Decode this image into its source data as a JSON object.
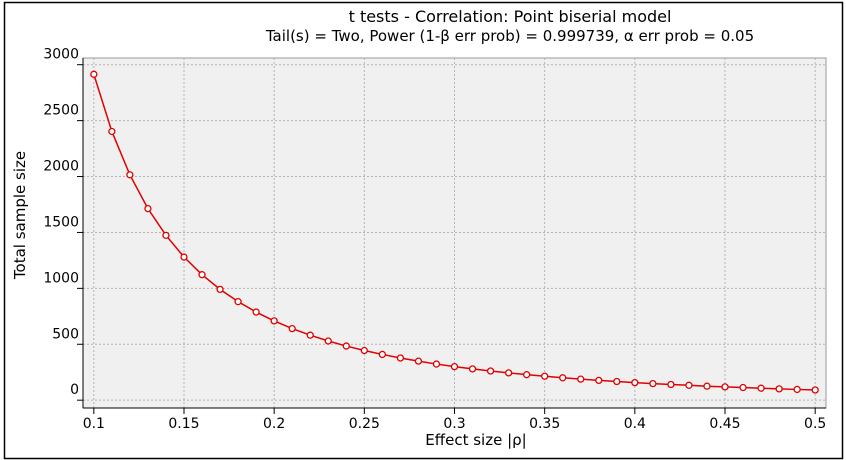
{
  "chart_data": {
    "type": "line",
    "title": "t tests - Correlation: Point biserial model",
    "subtitle": "Tail(s) = Two, Power (1-β err prob) = 0.999739, α err prob = 0.05",
    "x_label": "Effect size |ρ|",
    "y_label": "Total sample size",
    "x": [
      0.1,
      0.11,
      0.12,
      0.13,
      0.14,
      0.15,
      0.16,
      0.17,
      0.18,
      0.19,
      0.2,
      0.21,
      0.22,
      0.23,
      0.24,
      0.25,
      0.26,
      0.27,
      0.28,
      0.29,
      0.3,
      0.31,
      0.32,
      0.33,
      0.34,
      0.35,
      0.36,
      0.37,
      0.38,
      0.39,
      0.4,
      0.41,
      0.42,
      0.43,
      0.44,
      0.45,
      0.46,
      0.47,
      0.48,
      0.49,
      0.5
    ],
    "series": [
      {
        "color": "#e00000",
        "values": [
          2914,
          2403,
          2015,
          1713,
          1474,
          1280,
          1122,
          991,
          881,
          788,
          709,
          640,
          581,
          529,
          484,
          444,
          409,
          377,
          349,
          323,
          300,
          280,
          261,
          244,
          228,
          214,
          200,
          188,
          177,
          167,
          157,
          148,
          140,
          133,
          125,
          119,
          113,
          107,
          101,
          96,
          91
        ]
      }
    ],
    "xlim": [
      0.094,
      0.506
    ],
    "ylim": [
      -70,
      3060
    ],
    "xticks": [
      0.1,
      0.15,
      0.2,
      0.25,
      0.3,
      0.35,
      0.4,
      0.45,
      0.5
    ],
    "yticks": [
      0,
      500,
      1000,
      1500,
      2000,
      2500,
      3000
    ],
    "grid": true
  }
}
